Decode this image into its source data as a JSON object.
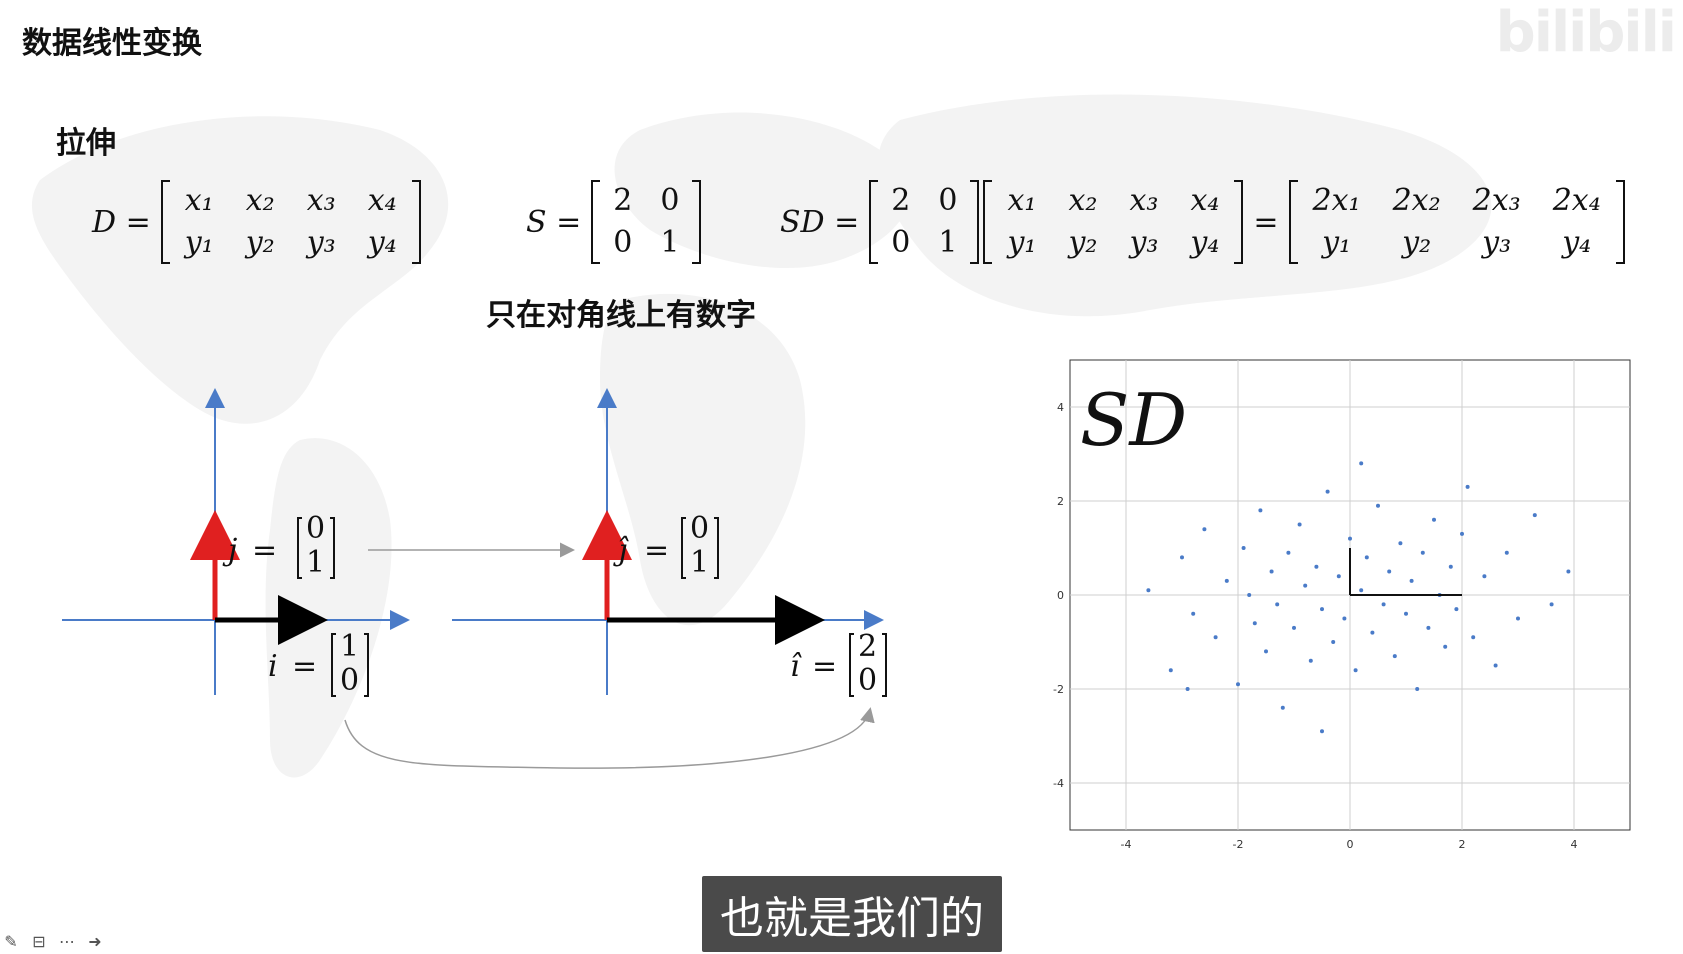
{
  "page": {
    "title": "数据线性变换",
    "section": "拉伸",
    "note": "只在对角线上有数字",
    "subtitle": "也就是我们的",
    "watermark": "bilibili"
  },
  "equations": {
    "d": {
      "lhs": "D =",
      "rows": [
        [
          "x₁",
          "x₂",
          "x₃",
          "x₄"
        ],
        [
          "y₁",
          "y₂",
          "y₃",
          "y₄"
        ]
      ]
    },
    "s": {
      "lhs": "S =",
      "rows": [
        [
          "2",
          "0"
        ],
        [
          "0",
          "1"
        ]
      ]
    },
    "sd": {
      "lhs": "SD =",
      "eq": "=",
      "left": [
        [
          "2",
          "0"
        ],
        [
          "0",
          "1"
        ]
      ],
      "mid": [
        [
          "x₁",
          "x₂",
          "x₃",
          "x₄"
        ],
        [
          "y₁",
          "y₂",
          "y₃",
          "y₄"
        ]
      ],
      "result": [
        [
          "2x₁",
          "2x₂",
          "2x₃",
          "2x₄"
        ],
        [
          "y₁",
          "y₂",
          "y₃",
          "y₄"
        ]
      ]
    }
  },
  "diagram": {
    "left": {
      "j": "j",
      "i": "i",
      "j_vec": [
        "0",
        "1"
      ],
      "i_vec": [
        "1",
        "0"
      ]
    },
    "right": {
      "j": "ĵ",
      "i": "î",
      "j_vec": [
        "0",
        "1"
      ],
      "i_vec": [
        "2",
        "0"
      ]
    },
    "colors": {
      "axis": "#4a7bc8",
      "j_arrow": "#e02020",
      "i_arrow": "#000000",
      "connector": "#9a9a9a"
    }
  },
  "chart_data": {
    "type": "scatter",
    "title": "SD",
    "xlim": [
      -5,
      5
    ],
    "ylim": [
      -5,
      5
    ],
    "xticks": [
      "-4",
      "-2",
      "0",
      "2",
      "4"
    ],
    "yticks": [
      "4",
      "2",
      "0",
      "-2",
      "-4"
    ],
    "grid": true,
    "point_color": "#4a7bc8",
    "points": [
      [
        -3.6,
        0.1
      ],
      [
        -3.2,
        -1.6
      ],
      [
        -3.0,
        0.8
      ],
      [
        -2.8,
        -0.4
      ],
      [
        -2.6,
        1.4
      ],
      [
        -2.4,
        -0.9
      ],
      [
        -2.2,
        0.3
      ],
      [
        -2.0,
        -1.9
      ],
      [
        -1.9,
        1.0
      ],
      [
        -1.8,
        0.0
      ],
      [
        -1.7,
        -0.6
      ],
      [
        -1.6,
        1.8
      ],
      [
        -1.5,
        -1.2
      ],
      [
        -1.4,
        0.5
      ],
      [
        -1.3,
        -0.2
      ],
      [
        -1.2,
        -2.4
      ],
      [
        -1.1,
        0.9
      ],
      [
        -1.0,
        -0.7
      ],
      [
        -0.9,
        1.5
      ],
      [
        -0.8,
        0.2
      ],
      [
        -0.7,
        -1.4
      ],
      [
        -0.6,
        0.6
      ],
      [
        -0.5,
        -0.3
      ],
      [
        -0.4,
        2.2
      ],
      [
        -0.3,
        -1.0
      ],
      [
        -0.2,
        0.4
      ],
      [
        -0.1,
        -0.5
      ],
      [
        0.0,
        1.2
      ],
      [
        0.1,
        -1.6
      ],
      [
        0.2,
        0.1
      ],
      [
        0.3,
        0.8
      ],
      [
        0.4,
        -0.8
      ],
      [
        0.5,
        1.9
      ],
      [
        0.6,
        -0.2
      ],
      [
        0.7,
        0.5
      ],
      [
        0.8,
        -1.3
      ],
      [
        0.9,
        1.1
      ],
      [
        1.0,
        -0.4
      ],
      [
        1.1,
        0.3
      ],
      [
        1.2,
        -2.0
      ],
      [
        1.3,
        0.9
      ],
      [
        1.4,
        -0.7
      ],
      [
        1.5,
        1.6
      ],
      [
        1.6,
        0.0
      ],
      [
        1.7,
        -1.1
      ],
      [
        1.8,
        0.6
      ],
      [
        1.9,
        -0.3
      ],
      [
        2.0,
        1.3
      ],
      [
        2.2,
        -0.9
      ],
      [
        2.4,
        0.4
      ],
      [
        2.6,
        -1.5
      ],
      [
        2.8,
        0.9
      ],
      [
        3.0,
        -0.5
      ],
      [
        3.3,
        1.7
      ],
      [
        3.6,
        -0.2
      ],
      [
        3.9,
        0.5
      ],
      [
        -2.9,
        -2.0
      ],
      [
        2.1,
        2.3
      ],
      [
        -0.5,
        -2.9
      ],
      [
        0.2,
        2.8
      ]
    ]
  }
}
